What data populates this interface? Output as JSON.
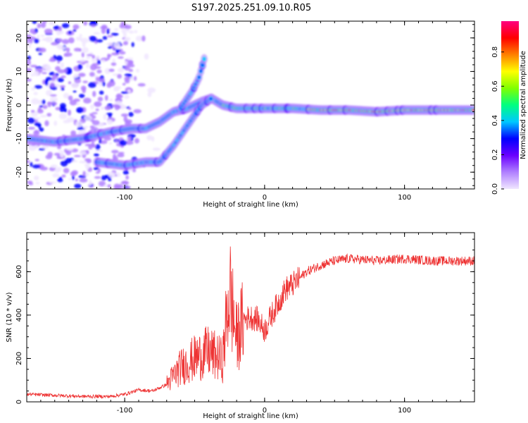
{
  "title": "S197.2025.251.09.10.R05",
  "chart_data": [
    {
      "type": "heatmap",
      "xlabel": "Height of straight line (km)",
      "ylabel": "Frequency (Hz)",
      "xlim": [
        -170,
        150
      ],
      "ylim": [
        -25,
        25
      ],
      "xticks": [
        "-100",
        "0",
        "100"
      ],
      "xtick_values": [
        -100,
        0,
        100
      ],
      "yticks": [
        "20",
        "10",
        "0",
        "-10",
        "-20"
      ],
      "ytick_values": [
        20,
        10,
        0,
        -10,
        -20
      ],
      "colorbar": {
        "label": "Normalized spectral amplitude",
        "ticks": [
          "0.0",
          "0.2",
          "0.4",
          "0.6",
          "0.8"
        ],
        "tick_values": [
          0.0,
          0.2,
          0.4,
          0.6,
          0.8
        ],
        "colors": [
          "#f0e6ff",
          "#b080ff",
          "#6a00ff",
          "#0000ff",
          "#00c8ff",
          "#00ff80",
          "#80ff00",
          "#ffff00",
          "#ff8000",
          "#ff0000",
          "#ff0080"
        ]
      },
      "tracks": [
        {
          "name": "main",
          "points": [
            [
              -170,
              -10
            ],
            [
              -150,
              -11
            ],
            [
              -130,
              -10
            ],
            [
              -110,
              -8
            ],
            [
              -95,
              -7
            ],
            [
              -85,
              -7
            ],
            [
              -75,
              -5
            ],
            [
              -65,
              -2
            ],
            [
              -55,
              -1
            ],
            [
              -45,
              1
            ],
            [
              -38,
              2
            ],
            [
              -30,
              0
            ],
            [
              -20,
              -1
            ],
            [
              -10,
              -1
            ],
            [
              0,
              -1
            ],
            [
              20,
              -1
            ],
            [
              40,
              -1.5
            ],
            [
              60,
              -1.5
            ],
            [
              80,
              -2
            ],
            [
              100,
              -1.5
            ],
            [
              120,
              -1.5
            ],
            [
              150,
              -1.5
            ]
          ]
        },
        {
          "name": "lower",
          "points": [
            [
              -120,
              -17
            ],
            [
              -100,
              -18
            ],
            [
              -85,
              -17
            ],
            [
              -75,
              -17
            ],
            [
              -65,
              -12
            ],
            [
              -55,
              -6
            ],
            [
              -45,
              0
            ],
            [
              -38,
              2
            ]
          ]
        },
        {
          "name": "upper",
          "points": [
            [
              -60,
              -1
            ],
            [
              -52,
              4
            ],
            [
              -47,
              8
            ],
            [
              -43,
              14
            ]
          ]
        }
      ]
    },
    {
      "type": "line",
      "xlabel": "Height of straight line (km)",
      "ylabel": "SNR (10 * v/v)",
      "xlim": [
        -170,
        150
      ],
      "ylim": [
        0,
        780
      ],
      "xticks": [
        "-100",
        "0",
        "100"
      ],
      "xtick_values": [
        -100,
        0,
        100
      ],
      "yticks": [
        "0",
        "200",
        "400",
        "600"
      ],
      "ytick_values": [
        0,
        200,
        400,
        600
      ],
      "color": "#ee3333",
      "series": [
        {
          "name": "SNR",
          "x": [
            -170,
            -150,
            -130,
            -110,
            -100,
            -90,
            -80,
            -70,
            -60,
            -50,
            -40,
            -30,
            -25,
            -20,
            -15,
            -10,
            -5,
            0,
            5,
            10,
            15,
            20,
            25,
            30,
            40,
            50,
            60,
            80,
            100,
            120,
            150
          ],
          "values": [
            35,
            30,
            25,
            25,
            35,
            55,
            50,
            80,
            160,
            200,
            230,
            190,
            520,
            290,
            380,
            390,
            380,
            330,
            400,
            460,
            520,
            540,
            570,
            600,
            630,
            650,
            660,
            650,
            660,
            650,
            650
          ]
        }
      ]
    }
  ]
}
